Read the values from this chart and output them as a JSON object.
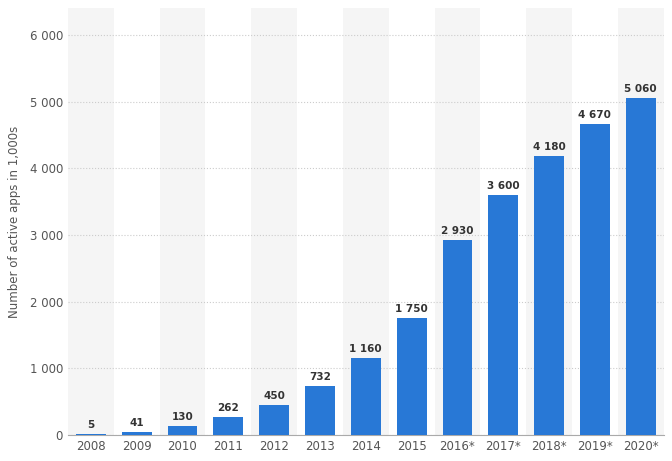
{
  "categories": [
    "2008",
    "2009",
    "2010",
    "2011",
    "2012",
    "2013",
    "2014",
    "2015",
    "2016*",
    "2017*",
    "2018*",
    "2019*",
    "2020*"
  ],
  "values": [
    5,
    41,
    130,
    262,
    450,
    732,
    1160,
    1750,
    2930,
    3600,
    4180,
    4670,
    5060
  ],
  "labels": [
    "5",
    "41",
    "130",
    "262",
    "450",
    "732",
    "1 160",
    "1 750",
    "2 930",
    "3 600",
    "4 180",
    "4 670",
    "5 060"
  ],
  "bar_color": "#2878d6",
  "ylabel": "Number of active apps in 1,000s",
  "ylim": [
    0,
    6400
  ],
  "yticks": [
    0,
    1000,
    2000,
    3000,
    4000,
    5000,
    6000
  ],
  "ytick_labels": [
    "0",
    "1 000",
    "2 000",
    "3 000",
    "4 000",
    "5 000",
    "6 000"
  ],
  "background_color": "#ffffff",
  "plot_bg_color": "#ffffff",
  "col_shade_color": "#f5f5f5",
  "grid_color": "#cccccc",
  "label_fontsize": 7.5,
  "tick_fontsize": 8.5,
  "ylabel_fontsize": 8.5
}
